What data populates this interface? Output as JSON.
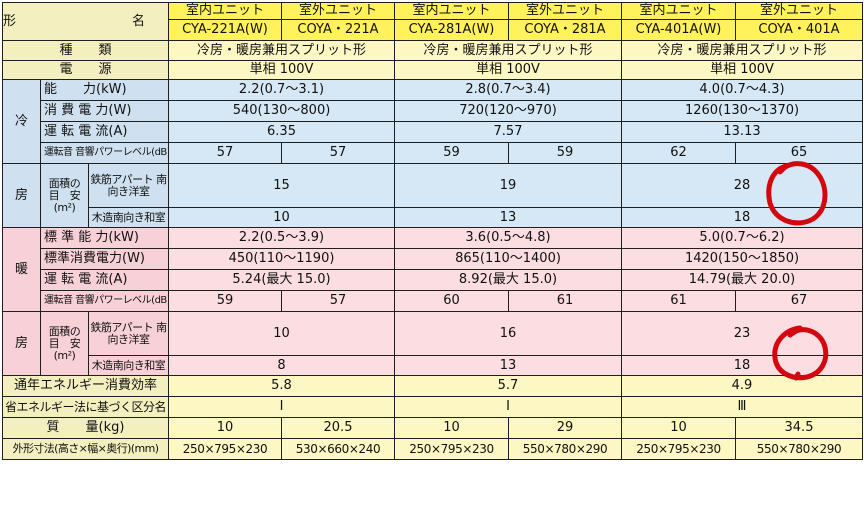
{
  "header": {
    "model_label": "形　　名",
    "indoor": "室内ユニット",
    "outdoor": "室外ユニット",
    "models": [
      "CYA-221A(W)",
      "COYA・221A",
      "CYA-281A(W)",
      "COYA・281A",
      "CYA-401A(W)",
      "COYA・401A"
    ]
  },
  "type_row": {
    "label": "種　　類",
    "values": [
      "冷房・暖房兼用スプリット形",
      "冷房・暖房兼用スプリット形",
      "冷房・暖房兼用スプリット形"
    ]
  },
  "power_row": {
    "label": "電　　源",
    "values": [
      "単相 100V",
      "単相 100V",
      "単相 100V"
    ]
  },
  "cooling": {
    "section_top": "冷",
    "section_bottom": "房",
    "capacity": {
      "label": "能　　力(kW)",
      "values": [
        "2.2(0.7～3.1)",
        "2.8(0.7～3.4)",
        "4.0(0.7～4.3)"
      ]
    },
    "consumption": {
      "label": "消 費 電 力(W)",
      "values": [
        "540(130～800)",
        "720(120～970)",
        "1260(130～1370)"
      ]
    },
    "current": {
      "label": "運 転 電 流(A)",
      "values": [
        "6.35",
        "7.57",
        "13.13"
      ]
    },
    "noise": {
      "label": "運転音 音響パワーレベル(dB)",
      "values": [
        "57",
        "57",
        "59",
        "59",
        "62",
        "65"
      ]
    },
    "area_label": [
      "面積の",
      "目　安",
      "(m²)"
    ],
    "concrete": {
      "label": "鉄筋アパート 南向き洋室",
      "values": [
        "15",
        "19",
        "28"
      ]
    },
    "wood": {
      "label": "木造南向き和室",
      "values": [
        "10",
        "13",
        "18"
      ]
    }
  },
  "heating": {
    "section_top": "暖",
    "section_bottom": "房",
    "capacity": {
      "label": "標 準 能 力(kW)",
      "values": [
        "2.2(0.5～3.9)",
        "3.6(0.5～4.8)",
        "5.0(0.7～6.2)"
      ]
    },
    "consumption": {
      "label": "標準消費電力(W)",
      "values": [
        "450(110～1190)",
        "865(110～1400)",
        "1420(150～1850)"
      ]
    },
    "current": {
      "label": "運 転 電 流(A)",
      "values": [
        "5.24(最大 15.0)",
        "8.92(最大 15.0)",
        "14.79(最大 20.0)"
      ]
    },
    "noise": {
      "label": "運転音 音響パワーレベル(dB)",
      "values": [
        "59",
        "57",
        "60",
        "61",
        "61",
        "67"
      ]
    },
    "area_label": [
      "面積の",
      "目　安",
      "(m²)"
    ],
    "concrete": {
      "label": "鉄筋アパート 南向き洋室",
      "values": [
        "10",
        "16",
        "23"
      ]
    },
    "wood": {
      "label": "木造南向き和室",
      "values": [
        "8",
        "13",
        "18"
      ]
    }
  },
  "efficiency": {
    "label": "通年エネルギー消費効率",
    "values": [
      "5.8",
      "5.7",
      "4.9"
    ]
  },
  "energy_class": {
    "label": "省エネルギー法に基づく区分名",
    "values": [
      "I",
      "I",
      "Ⅲ"
    ]
  },
  "weight": {
    "label": "質　　量(kg)",
    "values": [
      "10",
      "20.5",
      "10",
      "29",
      "10",
      "34.5"
    ]
  },
  "dimensions": {
    "label": "外形寸法(高さ×幅×奥行)(mm)",
    "values": [
      "250×795×230",
      "530×660×240",
      "250×795×230",
      "550×780×290",
      "250×795×230",
      "550×780×290"
    ]
  },
  "colors": {
    "annotation": "#d4070f"
  }
}
